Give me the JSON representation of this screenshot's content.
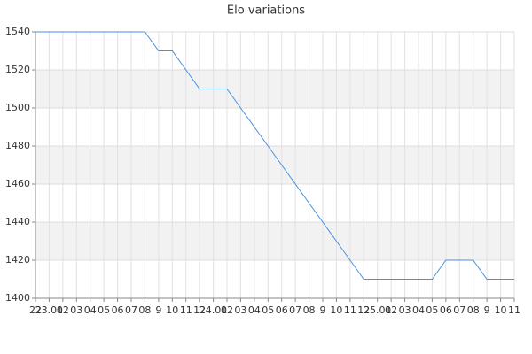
{
  "chart_data": {
    "type": "line",
    "title": "Elo variations",
    "categories": [
      "22",
      "23.01",
      "02",
      "03",
      "04",
      "05",
      "06",
      "07",
      "08",
      "9",
      "10",
      "11",
      "12",
      "24.01",
      "02",
      "03",
      "04",
      "05",
      "06",
      "07",
      "08",
      "9",
      "10",
      "11",
      "12",
      "25.01",
      "02",
      "03",
      "04",
      "05",
      "06",
      "07",
      "08",
      "9",
      "10",
      "11"
    ],
    "series": [
      {
        "name": "Elo",
        "color": "#4a8fe0",
        "values": [
          1540,
          1540,
          1540,
          1540,
          1540,
          1540,
          1540,
          1540,
          1540,
          1530,
          1530,
          1520,
          1510,
          1510,
          1510,
          1500,
          1490,
          1480,
          1470,
          1460,
          1450,
          1440,
          1430,
          1420,
          1410,
          1410,
          1410,
          1410,
          1410,
          1410,
          1420,
          1420,
          1420,
          1410,
          1410,
          1410
        ]
      }
    ],
    "ylim": [
      1400,
      1540
    ],
    "yticks": [
      1400,
      1420,
      1440,
      1460,
      1480,
      1500,
      1520,
      1540
    ],
    "grid": true
  }
}
